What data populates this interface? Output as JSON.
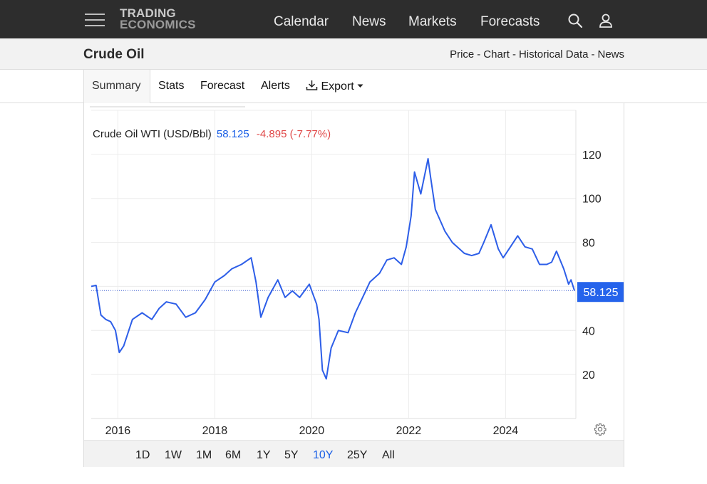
{
  "brand": {
    "line1": "TRADING",
    "line2": "ECONOMICS"
  },
  "nav": {
    "links": [
      "Calendar",
      "News",
      "Markets",
      "Forecasts"
    ],
    "icons": [
      "search-icon",
      "user-icon",
      "menu-icon"
    ]
  },
  "page": {
    "title": "Crude Oil",
    "subnav": [
      "Price",
      "Chart",
      "Historical Data",
      "News"
    ],
    "subnav_sep": "-"
  },
  "tabs": {
    "active": "Summary",
    "items": [
      "Stats",
      "Forecast",
      "Alerts"
    ],
    "export_label": "Export"
  },
  "chart": {
    "legend_name": "Crude Oil WTI (USD/Bbl)",
    "last_price": "58.125",
    "change": "-4.895 (-7.77%)",
    "price_label": "58.125",
    "ranges": [
      "1D",
      "1W",
      "1M",
      "6M",
      "1Y",
      "5Y",
      "10Y",
      "25Y",
      "All"
    ],
    "active_range": "10Y",
    "colors": {
      "line": "#2d5ee8",
      "label_bg": "#2563eb",
      "grid": "#ececec"
    }
  },
  "chart_data": {
    "type": "line",
    "title": "Crude Oil WTI (USD/Bbl)",
    "xlabel": "",
    "ylabel": "",
    "xlim": [
      2015.45,
      2025.45
    ],
    "ylim": [
      0,
      140
    ],
    "x_ticks": [
      "2016",
      "2018",
      "2020",
      "2022",
      "2024"
    ],
    "y_ticks": [
      20,
      40,
      60,
      80,
      100,
      120
    ],
    "y_tick_labels": [
      "20",
      "40",
      "60",
      "80",
      "100",
      "120"
    ],
    "grid": true,
    "series": [
      {
        "points": [
          [
            2015.45,
            60
          ],
          [
            2015.55,
            60.5
          ],
          [
            2015.65,
            47
          ],
          [
            2015.75,
            45
          ],
          [
            2015.85,
            44
          ],
          [
            2015.95,
            40
          ],
          [
            2016.03,
            30
          ],
          [
            2016.12,
            33
          ],
          [
            2016.3,
            45
          ],
          [
            2016.5,
            48
          ],
          [
            2016.7,
            45
          ],
          [
            2016.85,
            50
          ],
          [
            2017.0,
            53
          ],
          [
            2017.2,
            52
          ],
          [
            2017.4,
            46
          ],
          [
            2017.6,
            48
          ],
          [
            2017.8,
            54
          ],
          [
            2018.0,
            62
          ],
          [
            2018.2,
            65
          ],
          [
            2018.35,
            68
          ],
          [
            2018.55,
            70
          ],
          [
            2018.75,
            73
          ],
          [
            2018.85,
            62
          ],
          [
            2018.95,
            46
          ],
          [
            2019.1,
            55
          ],
          [
            2019.3,
            63
          ],
          [
            2019.45,
            55
          ],
          [
            2019.6,
            58
          ],
          [
            2019.75,
            55
          ],
          [
            2019.95,
            61
          ],
          [
            2020.1,
            52
          ],
          [
            2020.15,
            45
          ],
          [
            2020.22,
            22
          ],
          [
            2020.3,
            18
          ],
          [
            2020.4,
            32
          ],
          [
            2020.55,
            40
          ],
          [
            2020.75,
            39
          ],
          [
            2020.9,
            48
          ],
          [
            2021.05,
            55
          ],
          [
            2021.2,
            62
          ],
          [
            2021.4,
            66
          ],
          [
            2021.55,
            72
          ],
          [
            2021.7,
            73
          ],
          [
            2021.85,
            70
          ],
          [
            2021.95,
            78
          ],
          [
            2022.05,
            92
          ],
          [
            2022.12,
            112
          ],
          [
            2022.25,
            102
          ],
          [
            2022.4,
            118
          ],
          [
            2022.45,
            110
          ],
          [
            2022.55,
            95
          ],
          [
            2022.65,
            90
          ],
          [
            2022.75,
            85
          ],
          [
            2022.9,
            80
          ],
          [
            2023.0,
            78
          ],
          [
            2023.15,
            75
          ],
          [
            2023.3,
            74
          ],
          [
            2023.45,
            75
          ],
          [
            2023.55,
            80
          ],
          [
            2023.7,
            88
          ],
          [
            2023.85,
            77
          ],
          [
            2023.95,
            73
          ],
          [
            2024.1,
            78
          ],
          [
            2024.25,
            83
          ],
          [
            2024.4,
            78
          ],
          [
            2024.55,
            77
          ],
          [
            2024.7,
            70
          ],
          [
            2024.85,
            70
          ],
          [
            2024.95,
            71
          ],
          [
            2025.05,
            76
          ],
          [
            2025.2,
            68
          ],
          [
            2025.3,
            61
          ],
          [
            2025.35,
            63
          ],
          [
            2025.42,
            58.125
          ]
        ]
      }
    ]
  }
}
